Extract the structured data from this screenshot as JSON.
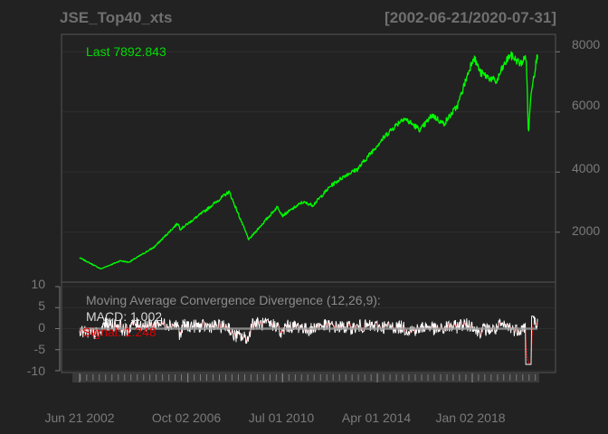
{
  "header": {
    "title": "JSE_Top40_xts",
    "range": "[2002-06-21/2020-07-31]"
  },
  "colors": {
    "background": "#222222",
    "panel_border": "#555555",
    "grid": "#2e2e2e",
    "price": "#00ff00",
    "macd": "#9a9a9a",
    "signal": "#ff0000",
    "text": "#7a7a7a"
  },
  "chart_data": [
    {
      "type": "line",
      "panel": "price",
      "label": "Last 7892.843",
      "y_ticks": [
        "2000",
        "4000",
        "6000",
        "8000"
      ],
      "ylim": [
        400,
        8400
      ],
      "grid": true,
      "x": [
        "2002-06-21",
        "2003-04-25",
        "2004-02-01",
        "2004-06-01",
        "2005-06-01",
        "2006-05-10",
        "2006-06-15",
        "2007-06-01",
        "2008-05-20",
        "2009-03-01",
        "2009-06-01",
        "2010-04-20",
        "2010-07-01",
        "2011-04-15",
        "2011-09-15",
        "2012-06-01",
        "2013-01-01",
        "2013-06-20",
        "2014-04-01",
        "2014-09-01",
        "2015-04-15",
        "2015-12-15",
        "2016-06-01",
        "2016-11-15",
        "2017-06-01",
        "2018-01-20",
        "2018-05-01",
        "2018-12-20",
        "2019-03-01",
        "2019-07-01",
        "2019-12-01",
        "2020-02-20",
        "2020-03-23",
        "2020-05-01",
        "2020-07-31"
      ],
      "values": [
        1150,
        780,
        1050,
        1000,
        1500,
        2300,
        2100,
        2700,
        3350,
        1750,
        2000,
        2850,
        2550,
        3000,
        2900,
        3550,
        3900,
        4100,
        4900,
        5300,
        5800,
        5400,
        5900,
        5600,
        6200,
        7850,
        7300,
        7000,
        7400,
        7900,
        7600,
        7850,
        5250,
        6700,
        7892.843
      ]
    },
    {
      "type": "line",
      "panel": "macd",
      "title": "Moving Average Convergence Divergence (12,26,9):",
      "macd_label": "MACD: 1.002",
      "signal_label": "Signal: 1.248",
      "y_ticks": [
        "10",
        "5",
        "0",
        "-5",
        "-10"
      ],
      "ylim": [
        -10,
        10
      ],
      "grid": true
    }
  ],
  "x_ticks": [
    {
      "date": "2002-06-21",
      "label": "Jun 21 2002"
    },
    {
      "date": "2006-10-02",
      "label": "Oct 02 2006"
    },
    {
      "date": "2010-07-01",
      "label": "Jul 01 2010"
    },
    {
      "date": "2014-04-01",
      "label": "Apr 01 2014"
    },
    {
      "date": "2018-01-02",
      "label": "Jan 02 2018"
    }
  ]
}
